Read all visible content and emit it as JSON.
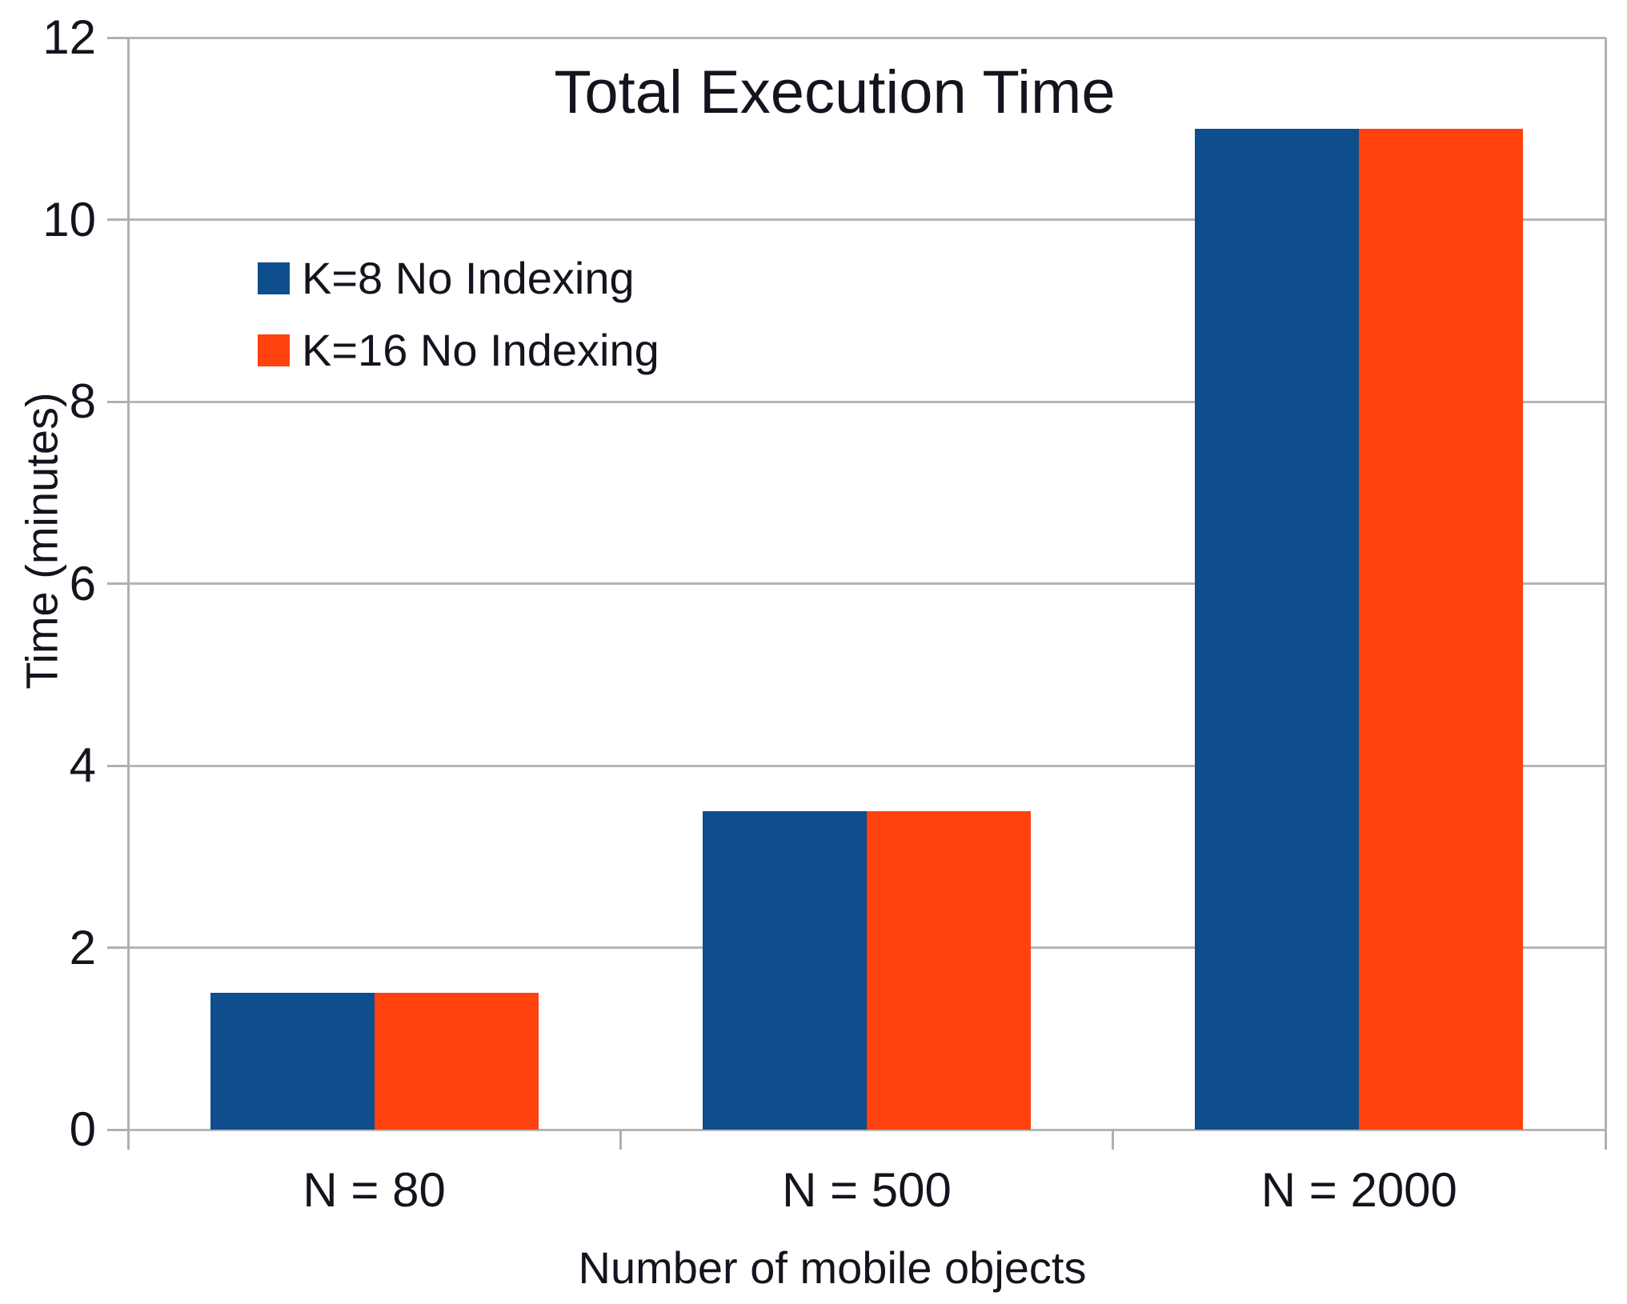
{
  "chart_data": {
    "type": "bar",
    "title": "Total Execution Time",
    "xlabel": "Number of mobile objects",
    "ylabel": "Time (minutes)",
    "categories": [
      "N = 80",
      "N = 500",
      "N = 2000"
    ],
    "series": [
      {
        "name": "K=8 No Indexing",
        "color": "#0E4E8C",
        "values": [
          1.5,
          3.5,
          11
        ]
      },
      {
        "name": "K=16 No Indexing",
        "color": "#FF420E",
        "values": [
          1.5,
          3.5,
          11
        ]
      }
    ],
    "ylim": [
      0,
      12
    ],
    "yticks": [
      0,
      2,
      4,
      6,
      8,
      10,
      12
    ],
    "grid": "horizontal",
    "legend_position": "upper-left",
    "colors": {
      "axis": "#B2B2B2",
      "gridline": "#B6B6B6",
      "text": "#14141E",
      "background": "#FFFFFF"
    }
  }
}
